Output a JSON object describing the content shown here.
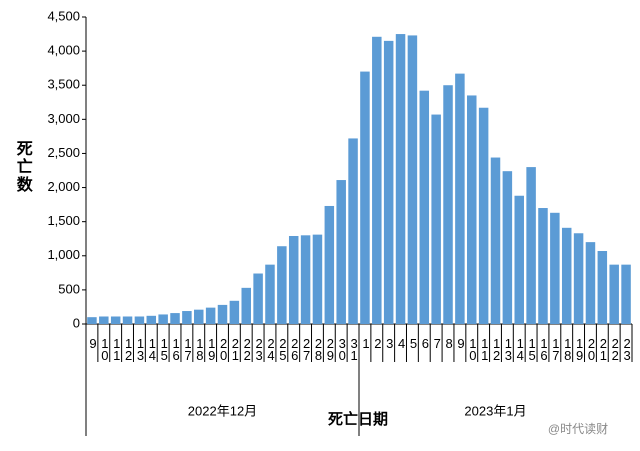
{
  "chart_data": {
    "type": "bar",
    "ylabel": "死亡数",
    "xlabel": "死亡日期",
    "groups": [
      {
        "label": "2022年12月",
        "count": 23
      },
      {
        "label": "2023年1月",
        "count": 23
      }
    ],
    "watermark": "@时代读财",
    "categories": [
      "9",
      "10",
      "11",
      "12",
      "13",
      "14",
      "15",
      "16",
      "17",
      "18",
      "19",
      "20",
      "21",
      "22",
      "23",
      "24",
      "25",
      "26",
      "27",
      "28",
      "29",
      "30",
      "31",
      "1",
      "2",
      "3",
      "4",
      "5",
      "6",
      "7",
      "8",
      "9",
      "10",
      "11",
      "12",
      "13",
      "14",
      "15",
      "16",
      "17",
      "18",
      "19",
      "20",
      "21",
      "22",
      "23"
    ],
    "values": [
      100,
      110,
      110,
      110,
      110,
      120,
      140,
      160,
      190,
      210,
      240,
      280,
      340,
      530,
      740,
      870,
      1140,
      1290,
      1300,
      1310,
      1730,
      2110,
      2720,
      3700,
      4210,
      4150,
      4250,
      4230,
      3420,
      3070,
      3500,
      3670,
      3350,
      3170,
      2440,
      2240,
      1880,
      2300,
      1700,
      1630,
      1410,
      1330,
      1200,
      1070,
      870,
      870
    ],
    "color": "#5b9bd5",
    "ylim": [
      0,
      4500
    ],
    "yticks": [
      0,
      500,
      {
        "value": 1000,
        "label": "1,000"
      },
      {
        "value": 1500,
        "label": "1,500"
      },
      {
        "value": 2000,
        "label": "2,000"
      },
      {
        "value": 2500,
        "label": "2,500"
      },
      {
        "value": 3000,
        "label": "3,000"
      },
      {
        "value": 3500,
        "label": "3,500"
      },
      {
        "value": 4000,
        "label": "4,000"
      },
      {
        "value": 4500,
        "label": "4,500"
      }
    ],
    "grid": false
  }
}
